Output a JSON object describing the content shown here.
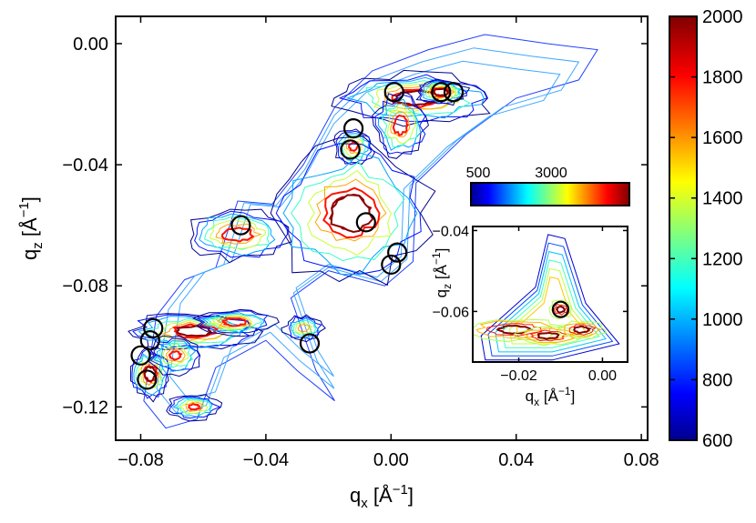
{
  "chart_data": {
    "type": "heatmap",
    "title": "",
    "colormap": "jet",
    "main": {
      "xlabel": "q_x [Å^-1]",
      "ylabel": "q_z [Å^-1]",
      "xlabel_parts": {
        "base": "q",
        "sub": "x",
        "unit_open": " [Å",
        "sup": "−1",
        "unit_close": "]"
      },
      "ylabel_parts": {
        "base": "q",
        "sub": "z",
        "unit_open": " [Å",
        "sup": "−1",
        "unit_close": "]"
      },
      "xlim": [
        -0.088,
        0.082
      ],
      "ylim": [
        -0.131,
        0.009
      ],
      "xticks": [
        -0.08,
        -0.04,
        0,
        0.04,
        0.08
      ],
      "xtick_labels": [
        "−0.08",
        "−0.04",
        "0.00",
        "0.04",
        "0.08"
      ],
      "yticks": [
        0,
        -0.04,
        -0.08,
        -0.12
      ],
      "ytick_labels": [
        "0.00",
        "−0.04",
        "−0.08",
        "−0.12"
      ],
      "colorbar": {
        "range": [
          600,
          2000
        ],
        "ticks": [
          600,
          800,
          1000,
          1200,
          1400,
          1600,
          1800,
          2000
        ],
        "tick_labels": [
          "600",
          "800",
          "1000",
          "1200",
          "1400",
          "1600",
          "1800",
          "2000"
        ]
      },
      "intensity_regions": [
        {
          "cx": 0.008,
          "cy": -0.018,
          "rx": 0.012,
          "ry": 0.004,
          "peak": 2000
        },
        {
          "cx": 0.016,
          "cy": -0.016,
          "rx": 0.004,
          "ry": 0.002,
          "peak": 2000
        },
        {
          "cx": 0.003,
          "cy": -0.027,
          "rx": 0.004,
          "ry": 0.005,
          "peak": 1900
        },
        {
          "cx": -0.012,
          "cy": -0.034,
          "rx": 0.003,
          "ry": 0.003,
          "peak": 1800
        },
        {
          "cx": -0.013,
          "cy": -0.056,
          "rx": 0.012,
          "ry": 0.011,
          "peak": 2000
        },
        {
          "cx": -0.049,
          "cy": -0.063,
          "rx": 0.008,
          "ry": 0.004,
          "peak": 1900
        },
        {
          "cx": -0.063,
          "cy": -0.095,
          "rx": 0.01,
          "ry": 0.003,
          "peak": 2000
        },
        {
          "cx": -0.05,
          "cy": -0.092,
          "rx": 0.006,
          "ry": 0.002,
          "peak": 1900
        },
        {
          "cx": -0.077,
          "cy": -0.109,
          "rx": 0.003,
          "ry": 0.004,
          "peak": 2000
        },
        {
          "cx": -0.069,
          "cy": -0.103,
          "rx": 0.004,
          "ry": 0.003,
          "peak": 1800
        },
        {
          "cx": -0.063,
          "cy": -0.12,
          "rx": 0.004,
          "ry": 0.002,
          "peak": 1800
        },
        {
          "cx": -0.028,
          "cy": -0.094,
          "rx": 0.003,
          "ry": 0.002,
          "peak": 1700
        }
      ],
      "circles": [
        {
          "x": 0.001,
          "y": -0.016
        },
        {
          "x": 0.016,
          "y": -0.016
        },
        {
          "x": 0.02,
          "y": -0.016
        },
        {
          "x": -0.012,
          "y": -0.028
        },
        {
          "x": -0.013,
          "y": -0.035
        },
        {
          "x": -0.048,
          "y": -0.06
        },
        {
          "x": -0.008,
          "y": -0.059
        },
        {
          "x": 0.002,
          "y": -0.069
        },
        {
          "x": 0.0,
          "y": -0.073
        },
        {
          "x": -0.076,
          "y": -0.094
        },
        {
          "x": -0.077,
          "y": -0.098
        },
        {
          "x": -0.08,
          "y": -0.103
        },
        {
          "x": -0.078,
          "y": -0.111
        },
        {
          "x": -0.026,
          "y": -0.099
        }
      ]
    },
    "inset": {
      "xlabel_parts": {
        "base": "q",
        "sub": "x",
        "unit_open": " [Å",
        "sup": "−1",
        "unit_close": "]"
      },
      "ylabel_parts": {
        "base": "q",
        "sub": "z",
        "unit_open": " [Å",
        "sup": "−1",
        "unit_close": "]"
      },
      "xlim": [
        -0.031,
        0.006
      ],
      "ylim": [
        -0.0725,
        -0.039
      ],
      "xticks": [
        -0.02,
        0
      ],
      "xtick_labels": [
        "−0.02",
        "0.00"
      ],
      "yticks": [
        -0.04,
        -0.06
      ],
      "ytick_labels": [
        "−0.04",
        "−0.06"
      ],
      "colorbar": {
        "range": [
          500,
          3500
        ],
        "tick_labels_shown": [
          "500",
          "3000"
        ]
      },
      "circles": [
        {
          "x": -0.01,
          "y": -0.0595
        }
      ]
    }
  }
}
